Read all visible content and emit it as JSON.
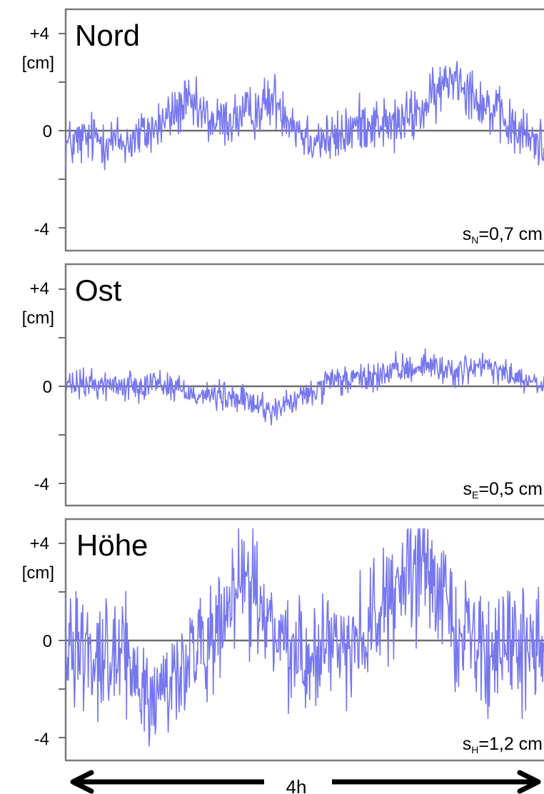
{
  "chart_data": [
    {
      "type": "line",
      "title": "Nord",
      "ylabel": "[cm]",
      "ylim": [
        -5,
        5
      ],
      "y_ticks": [
        -4,
        -2,
        0,
        2,
        4
      ],
      "y_tick_labels": [
        "-4",
        "",
        "0",
        "",
        "+4"
      ],
      "stat": {
        "symbol": "s",
        "subscript": "N",
        "value": "=0,7 cm"
      },
      "x_range_hours": [
        0,
        4
      ],
      "series": [
        {
          "x_hours": [
            0,
            0.25,
            0.5,
            0.75,
            1.0,
            1.25,
            1.5,
            1.75,
            2.0,
            2.25,
            2.5,
            2.75,
            3.0,
            3.25,
            3.5,
            3.75,
            4.0
          ],
          "values": [
            -0.6,
            -0.3,
            -0.5,
            0.1,
            1.1,
            0.3,
            0.6,
            1.3,
            -0.2,
            -0.4,
            0.4,
            0.2,
            0.9,
            2.4,
            1.1,
            0.0,
            -0.6
          ]
        }
      ]
    },
    {
      "type": "line",
      "title": "Ost",
      "ylabel": "[cm]",
      "ylim": [
        -5,
        5
      ],
      "y_ticks": [
        -4,
        -2,
        0,
        2,
        4
      ],
      "y_tick_labels": [
        "-4",
        "",
        "0",
        "",
        "+4"
      ],
      "stat": {
        "symbol": "s",
        "subscript": "E",
        "value": "=0,5 cm"
      },
      "x_range_hours": [
        0,
        4
      ],
      "series": [
        {
          "x_hours": [
            0,
            0.25,
            0.5,
            0.75,
            1.0,
            1.25,
            1.5,
            1.75,
            2.0,
            2.25,
            2.5,
            2.75,
            3.0,
            3.25,
            3.5,
            3.75,
            4.0
          ],
          "values": [
            0.0,
            0.1,
            0.0,
            0.2,
            -0.2,
            -0.4,
            -0.6,
            -1.0,
            -0.4,
            0.2,
            0.3,
            0.6,
            0.9,
            0.6,
            0.8,
            0.4,
            -0.1
          ]
        }
      ]
    },
    {
      "type": "line",
      "title": "Höhe",
      "ylabel": "[cm]",
      "ylim": [
        -5,
        5
      ],
      "y_ticks": [
        -4,
        -2,
        0,
        2,
        4
      ],
      "y_tick_labels": [
        "-4",
        "",
        "0",
        "",
        "+4"
      ],
      "stat": {
        "symbol": "s",
        "subscript": "H",
        "value": "=1,2 cm"
      },
      "x_range_hours": [
        0,
        4
      ],
      "series": [
        {
          "x_hours": [
            0,
            0.25,
            0.5,
            0.75,
            1.0,
            1.25,
            1.5,
            1.75,
            2.0,
            2.25,
            2.5,
            2.75,
            3.0,
            3.25,
            3.5,
            3.75,
            4.0
          ],
          "values": [
            0.2,
            -0.4,
            -0.9,
            -2.5,
            -0.8,
            -0.2,
            2.6,
            0.2,
            -0.6,
            -0.3,
            0.5,
            1.8,
            3.2,
            0.8,
            -0.4,
            -0.5,
            0.0
          ]
        }
      ]
    }
  ],
  "duration": {
    "label": "4h"
  },
  "colors": {
    "series": "#7777ee",
    "frame": "#7a7a7a",
    "zero_line": "#6e6e6e",
    "arrow": "#000000"
  }
}
